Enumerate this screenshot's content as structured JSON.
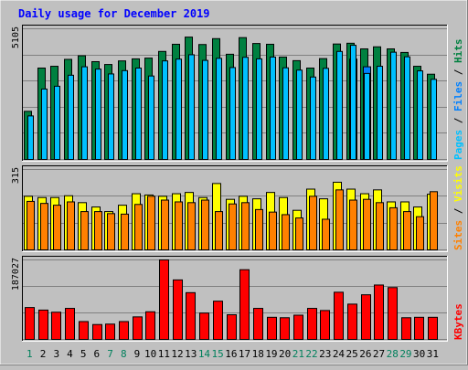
{
  "chart_data": {
    "title": "Daily usage for December 2019",
    "type": "bar",
    "days": [
      "1",
      "2",
      "3",
      "4",
      "5",
      "6",
      "7",
      "8",
      "9",
      "10",
      "11",
      "12",
      "13",
      "14",
      "15",
      "16",
      "17",
      "18",
      "19",
      "20",
      "21",
      "22",
      "23",
      "24",
      "25",
      "26",
      "27",
      "28",
      "29",
      "30",
      "31"
    ],
    "weekend_days": [
      "1",
      "7",
      "8",
      "14",
      "15",
      "21",
      "22",
      "28",
      "29"
    ],
    "panels": [
      {
        "id": "hits",
        "ymax_label": "5105",
        "ymax": 5105,
        "right_labels": [
          {
            "text": "Hits",
            "color": "#008040"
          },
          {
            "text": " / ",
            "color": "#000000"
          },
          {
            "text": "Files",
            "color": "#0080ff"
          },
          {
            "text": " / ",
            "color": "#000000"
          },
          {
            "text": "Pages",
            "color": "#00c0ff"
          }
        ],
        "series": [
          {
            "key": "hits",
            "color": "#008040",
            "values": [
              1880,
              3570,
              3640,
              3910,
              4050,
              3820,
              3710,
              3850,
              3930,
              3960,
              4220,
              4500,
              4780,
              4490,
              4720,
              4110,
              4760,
              4530,
              4500,
              4000,
              3860,
              3570,
              3940,
              4510,
              4540,
              4320,
              4400,
              4320,
              4180,
              3640,
              3330
            ]
          },
          {
            "key": "files",
            "color": "#0080ff",
            "values": [
              0,
              0,
              0,
              0,
              0,
              0,
              0,
              0,
              0,
              0,
              0,
              0,
              0,
              0,
              0,
              0,
              0,
              0,
              0,
              0,
              0,
              0,
              0,
              0,
              3920,
              3620,
              0,
              0,
              0,
              0,
              0
            ]
          },
          {
            "key": "pages",
            "color": "#00c0ff",
            "values": [
              1700,
              2750,
              2860,
              3290,
              3620,
              3530,
              3340,
              3470,
              3570,
              3260,
              3850,
              3920,
              4090,
              3870,
              3950,
              3590,
              3990,
              3930,
              4000,
              3580,
              3490,
              3220,
              3560,
              4220,
              4460,
              3360,
              3640,
              4190,
              4010,
              3460,
              3130
            ]
          }
        ]
      },
      {
        "id": "visits",
        "ymax_label": "315",
        "ymax": 315,
        "right_labels": [
          {
            "text": "Visits",
            "color": "#ffff00"
          },
          {
            "text": " / ",
            "color": "#000000"
          },
          {
            "text": "Sites",
            "color": "#ff8000"
          }
        ],
        "series": [
          {
            "key": "visits",
            "color": "#ffff00",
            "values": [
              210,
              205,
              205,
              212,
              185,
              168,
              150,
              175,
              220,
              215,
              210,
              220,
              225,
              205,
              260,
              198,
              210,
              200,
              225,
              205,
              155,
              238,
              200,
              265,
              238,
              220,
              235,
              188,
              188,
              168,
              218
            ]
          },
          {
            "key": "sites",
            "color": "#ff8000",
            "values": [
              190,
              182,
              175,
              188,
              150,
              150,
              142,
              140,
              178,
              210,
              195,
              188,
              185,
              195,
              150,
              180,
              185,
              158,
              148,
              138,
              125,
              210,
              120,
              235,
              195,
              198,
              185,
              165,
              150,
              130,
              228
            ]
          }
        ]
      },
      {
        "id": "kbytes",
        "ymax_label": "187027",
        "ymax": 187027,
        "right_labels": [
          {
            "text": "KBytes",
            "color": "#ff0000"
          }
        ],
        "series": [
          {
            "key": "kbytes",
            "color": "#ff0000",
            "values": [
              75000,
              69000,
              64000,
              73000,
              42000,
              35000,
              36000,
              42000,
              53000,
              65000,
              187000,
              140000,
              110000,
              62000,
              90000,
              58000,
              164000,
              73000,
              52000,
              51000,
              57000,
              73000,
              68000,
              111000,
              83000,
              105000,
              128000,
              122000,
              51000,
              52000,
              52000
            ]
          }
        ]
      }
    ]
  }
}
